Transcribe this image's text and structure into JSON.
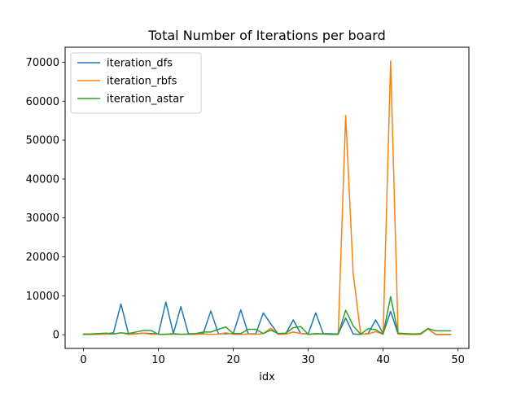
{
  "chart_data": {
    "type": "line",
    "title": "Total Number of Iterations per board",
    "xlabel": "idx",
    "ylabel": "",
    "xlim": [
      -2.45,
      51.45
    ],
    "ylim": [
      -3512,
      73862
    ],
    "xticks": [
      0,
      10,
      20,
      30,
      40,
      50
    ],
    "yticks": [
      0,
      10000,
      20000,
      30000,
      40000,
      50000,
      60000,
      70000
    ],
    "grid": false,
    "legend_position": "top-left",
    "x": [
      0,
      1,
      2,
      3,
      4,
      5,
      6,
      7,
      8,
      9,
      10,
      11,
      12,
      13,
      14,
      15,
      16,
      17,
      18,
      19,
      20,
      21,
      22,
      23,
      24,
      25,
      26,
      27,
      28,
      29,
      30,
      31,
      32,
      33,
      34,
      35,
      36,
      37,
      38,
      39,
      40,
      41,
      42,
      43,
      44,
      45,
      46,
      47,
      48,
      49
    ],
    "series": [
      {
        "name": "iteration_dfs",
        "color": "#1f77b4",
        "values": [
          150,
          150,
          200,
          250,
          500,
          7900,
          300,
          250,
          400,
          300,
          200,
          8400,
          300,
          7200,
          250,
          250,
          400,
          6100,
          300,
          250,
          300,
          6400,
          250,
          200,
          5600,
          2800,
          150,
          250,
          3800,
          300,
          200,
          5600,
          300,
          250,
          200,
          4300,
          200,
          100,
          300,
          3800,
          300,
          6000,
          200,
          200,
          150,
          150,
          1500,
          100,
          100,
          100
        ]
      },
      {
        "name": "iteration_rbfs",
        "color": "#ff7f0e",
        "values": [
          50,
          80,
          100,
          150,
          200,
          500,
          80,
          200,
          400,
          100,
          150,
          150,
          100,
          150,
          100,
          100,
          200,
          100,
          150,
          500,
          100,
          100,
          200,
          100,
          300,
          1700,
          100,
          150,
          700,
          300,
          100,
          150,
          200,
          100,
          150,
          56300,
          15800,
          150,
          200,
          800,
          150,
          70300,
          150,
          100,
          50,
          100,
          1500,
          50,
          50,
          50
        ]
      },
      {
        "name": "iteration_astar",
        "color": "#2ca02c",
        "values": [
          150,
          200,
          300,
          400,
          200,
          500,
          300,
          700,
          1100,
          1100,
          100,
          100,
          300,
          100,
          200,
          300,
          700,
          700,
          1400,
          2000,
          300,
          300,
          1400,
          1400,
          300,
          1200,
          300,
          400,
          1800,
          2100,
          100,
          300,
          200,
          100,
          100,
          6300,
          2300,
          150,
          1600,
          1300,
          150,
          9800,
          400,
          300,
          200,
          300,
          1600,
          1000,
          1000,
          1000
        ]
      }
    ]
  }
}
